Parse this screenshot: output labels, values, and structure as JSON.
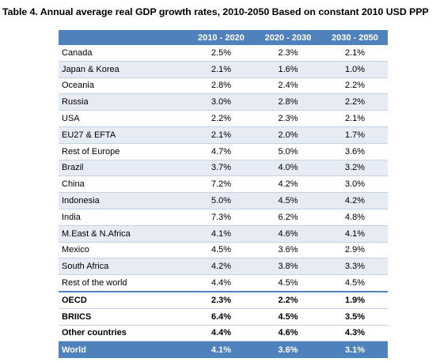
{
  "title": "Table 4. Annual average real GDP growth rates, 2010-2050 Based on constant 2010 USD PPP",
  "table": {
    "header": [
      "",
      "2010 - 2020",
      "2020 - 2030",
      "2030 - 2050"
    ],
    "rows": [
      {
        "name": "Canada",
        "v": [
          "2.5%",
          "2.3%",
          "2.1%"
        ]
      },
      {
        "name": "Japan & Korea",
        "v": [
          "2.1%",
          "1.6%",
          "1.0%"
        ]
      },
      {
        "name": "Oceania",
        "v": [
          "2.8%",
          "2.4%",
          "2.2%"
        ]
      },
      {
        "name": "Russia",
        "v": [
          "3.0%",
          "2.8%",
          "2.2%"
        ]
      },
      {
        "name": "USA",
        "v": [
          "2.2%",
          "2.3%",
          "2.1%"
        ]
      },
      {
        "name": "EU27 & EFTA",
        "v": [
          "2.1%",
          "2.0%",
          "1.7%"
        ]
      },
      {
        "name": "Rest of Europe",
        "v": [
          "4.7%",
          "5.0%",
          "3.6%"
        ]
      },
      {
        "name": "Brazil",
        "v": [
          "3.7%",
          "4.0%",
          "3.2%"
        ]
      },
      {
        "name": "China",
        "v": [
          "7.2%",
          "4.2%",
          "3.0%"
        ]
      },
      {
        "name": "Indonesia",
        "v": [
          "5.0%",
          "4.5%",
          "4.2%"
        ]
      },
      {
        "name": "India",
        "v": [
          "7.3%",
          "6.2%",
          "4.8%"
        ]
      },
      {
        "name": "M.East & N.Africa",
        "v": [
          "4.1%",
          "4.6%",
          "4.1%"
        ]
      },
      {
        "name": "Mexico",
        "v": [
          "4.5%",
          "3.6%",
          "2.9%"
        ]
      },
      {
        "name": "South Africa",
        "v": [
          "4.2%",
          "3.8%",
          "3.3%"
        ]
      },
      {
        "name": "Rest of the world",
        "v": [
          "4.4%",
          "4.5%",
          "4.5%"
        ]
      }
    ],
    "summary": [
      {
        "name": "OECD",
        "v": [
          "2.3%",
          "2.2%",
          "1.9%"
        ]
      },
      {
        "name": "BRIICS",
        "v": [
          "6.4%",
          "4.5%",
          "3.5%"
        ]
      },
      {
        "name": "Other countries",
        "v": [
          "4.4%",
          "4.6%",
          "4.3%"
        ]
      }
    ],
    "world": {
      "name": "World",
      "v": [
        "4.1%",
        "3.6%",
        "3.1%"
      ]
    }
  },
  "colors": {
    "header": "#4f81bd",
    "alt_row": "#e6ebf4"
  }
}
